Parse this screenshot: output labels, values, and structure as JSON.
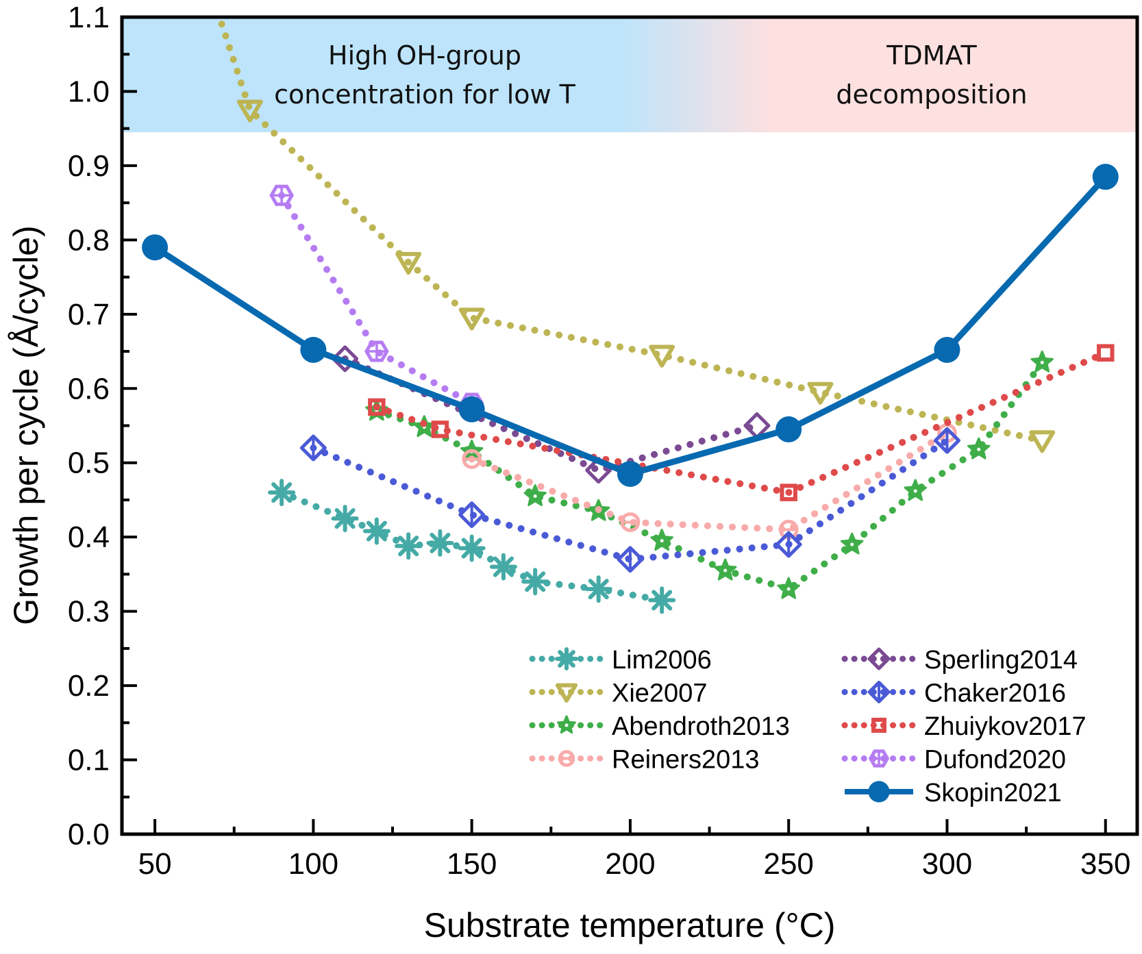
{
  "chart_data": {
    "type": "line",
    "title": "",
    "xlabel": "Substrate temperature (°C)",
    "ylabel": "Growth per cycle (Å/cycle)",
    "xlim": [
      39.6,
      360
    ],
    "ylim": [
      0.0,
      1.1
    ],
    "xticks": [
      50,
      100,
      150,
      200,
      250,
      300,
      350
    ],
    "xtick_labels": [
      "50",
      "100",
      "150",
      "200",
      "250",
      "300",
      "350"
    ],
    "x_minor_ticks": [
      75,
      125,
      175,
      225,
      275,
      325
    ],
    "yticks": [
      0.0,
      0.1,
      0.2,
      0.3,
      0.4,
      0.5,
      0.6,
      0.7,
      0.8,
      0.9,
      1.0,
      1.1
    ],
    "ytick_labels": [
      "0.0",
      "0.1",
      "0.2",
      "0.3",
      "0.4",
      "0.5",
      "0.6",
      "0.7",
      "0.8",
      "0.9",
      "1.0",
      "1.1"
    ],
    "y_minor_ticks": [
      0.05,
      0.15,
      0.25,
      0.35,
      0.45,
      0.55,
      0.65,
      0.75,
      0.85,
      0.95,
      1.05
    ],
    "grid": false,
    "legend_position": "bottom-right",
    "regions": [
      {
        "label_lines": [
          "High OH-group",
          "concentration for low T"
        ],
        "y_range": [
          0.945,
          1.1
        ],
        "color": "#bde4fb",
        "side": "left"
      },
      {
        "label_lines": [
          "TDMAT",
          "decomposition"
        ],
        "y_range": [
          0.945,
          1.1
        ],
        "color": "#fde0e0",
        "side": "right"
      }
    ],
    "series": [
      {
        "name": "Lim2006",
        "color": "#45aaa6",
        "marker": "asterisk",
        "line": "dotted",
        "x": [
          90,
          110,
          120,
          130,
          140,
          150,
          160,
          170,
          190,
          210
        ],
        "y": [
          0.46,
          0.425,
          0.408,
          0.388,
          0.392,
          0.385,
          0.36,
          0.34,
          0.33,
          0.315
        ]
      },
      {
        "name": "Xie2007",
        "color": "#bdb554",
        "marker": "triangle-down",
        "line": "dotted",
        "x": [
          65,
          80,
          130,
          150,
          210,
          260,
          330
        ],
        "y": [
          1.17,
          0.975,
          0.77,
          0.695,
          0.645,
          0.595,
          0.53
        ]
      },
      {
        "name": "Abendroth2013",
        "color": "#3fae49",
        "marker": "star",
        "line": "dotted",
        "x": [
          120,
          135,
          150,
          170,
          190,
          210,
          230,
          250,
          270,
          290,
          310,
          330
        ],
        "y": [
          0.57,
          0.548,
          0.515,
          0.455,
          0.435,
          0.395,
          0.355,
          0.33,
          0.39,
          0.462,
          0.518,
          0.635
        ]
      },
      {
        "name": "Reiners2013",
        "color": "#f9aaaa",
        "marker": "circle-bar",
        "line": "dotted",
        "x": [
          150,
          200,
          250,
          300
        ],
        "y": [
          0.505,
          0.42,
          0.41,
          0.54
        ]
      },
      {
        "name": "Sperling2014",
        "color": "#7a4a93",
        "marker": "diamond",
        "line": "dotted",
        "x": [
          110,
          190,
          240
        ],
        "y": [
          0.64,
          0.49,
          0.55
        ]
      },
      {
        "name": "Chaker2016",
        "color": "#4a5ad6",
        "marker": "diamond-bar",
        "line": "dotted",
        "x": [
          100,
          150,
          200,
          250,
          300
        ],
        "y": [
          0.52,
          0.43,
          0.37,
          0.39,
          0.53
        ]
      },
      {
        "name": "Zhuiykov2017",
        "color": "#df4a4a",
        "marker": "square",
        "line": "dotted",
        "x": [
          120,
          140,
          250,
          350
        ],
        "y": [
          0.575,
          0.545,
          0.46,
          0.648
        ]
      },
      {
        "name": "Dufond2020",
        "color": "#b57cf2",
        "marker": "hexagon-cross",
        "line": "dotted",
        "x": [
          90,
          120,
          150
        ],
        "y": [
          0.86,
          0.65,
          0.58
        ]
      },
      {
        "name": "Skopin2021",
        "color": "#0769b0",
        "marker": "filled-circle",
        "line": "solid",
        "x": [
          50,
          100,
          150,
          200,
          250,
          300,
          350
        ],
        "y": [
          0.79,
          0.652,
          0.572,
          0.485,
          0.545,
          0.652,
          0.885
        ]
      }
    ]
  }
}
